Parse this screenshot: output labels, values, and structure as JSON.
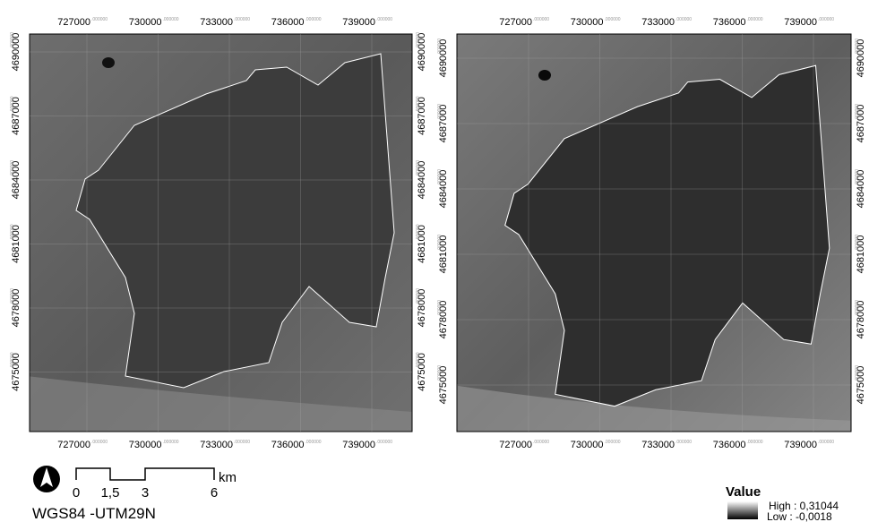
{
  "maps": [
    {
      "x_ticks": [
        {
          "label": "727000",
          "decimals": ".000000"
        },
        {
          "label": "730000",
          "decimals": ".000000"
        },
        {
          "label": "733000",
          "decimals": ".000000"
        },
        {
          "label": "736000",
          "decimals": ".000000"
        },
        {
          "label": "739000",
          "decimals": ".000000"
        }
      ],
      "y_ticks": [
        {
          "label": "4690000",
          "decimals": ".000000"
        },
        {
          "label": "4687000",
          "decimals": ".000000"
        },
        {
          "label": "4684000",
          "decimals": ".000000"
        },
        {
          "label": "4681000",
          "decimals": ".000000"
        },
        {
          "label": "4678000",
          "decimals": ".000000"
        },
        {
          "label": "4675000",
          "decimals": ".000000"
        }
      ]
    },
    {
      "x_ticks": [
        {
          "label": "727000",
          "decimals": ".000000"
        },
        {
          "label": "730000",
          "decimals": ".000000"
        },
        {
          "label": "733000",
          "decimals": ".000000"
        },
        {
          "label": "736000",
          "decimals": ".000000"
        },
        {
          "label": "739000",
          "decimals": ".000000"
        }
      ],
      "y_ticks": [
        {
          "label": "4690000",
          "decimals": ".000000"
        },
        {
          "label": "4687000",
          "decimals": ".000000"
        },
        {
          "label": "4684000",
          "decimals": ".000000"
        },
        {
          "label": "4681000",
          "decimals": ".000000"
        },
        {
          "label": "4678000",
          "decimals": ".000000"
        },
        {
          "label": "4675000",
          "decimals": ".000000"
        }
      ]
    }
  ],
  "scale_bar": {
    "labels": [
      "0",
      "1,5",
      "3",
      "6"
    ],
    "unit": "km"
  },
  "crs": "WGS84 -UTM29N",
  "legend": {
    "title": "Value",
    "high": "High : 0,31044",
    "low": "Low : -0,0018"
  }
}
